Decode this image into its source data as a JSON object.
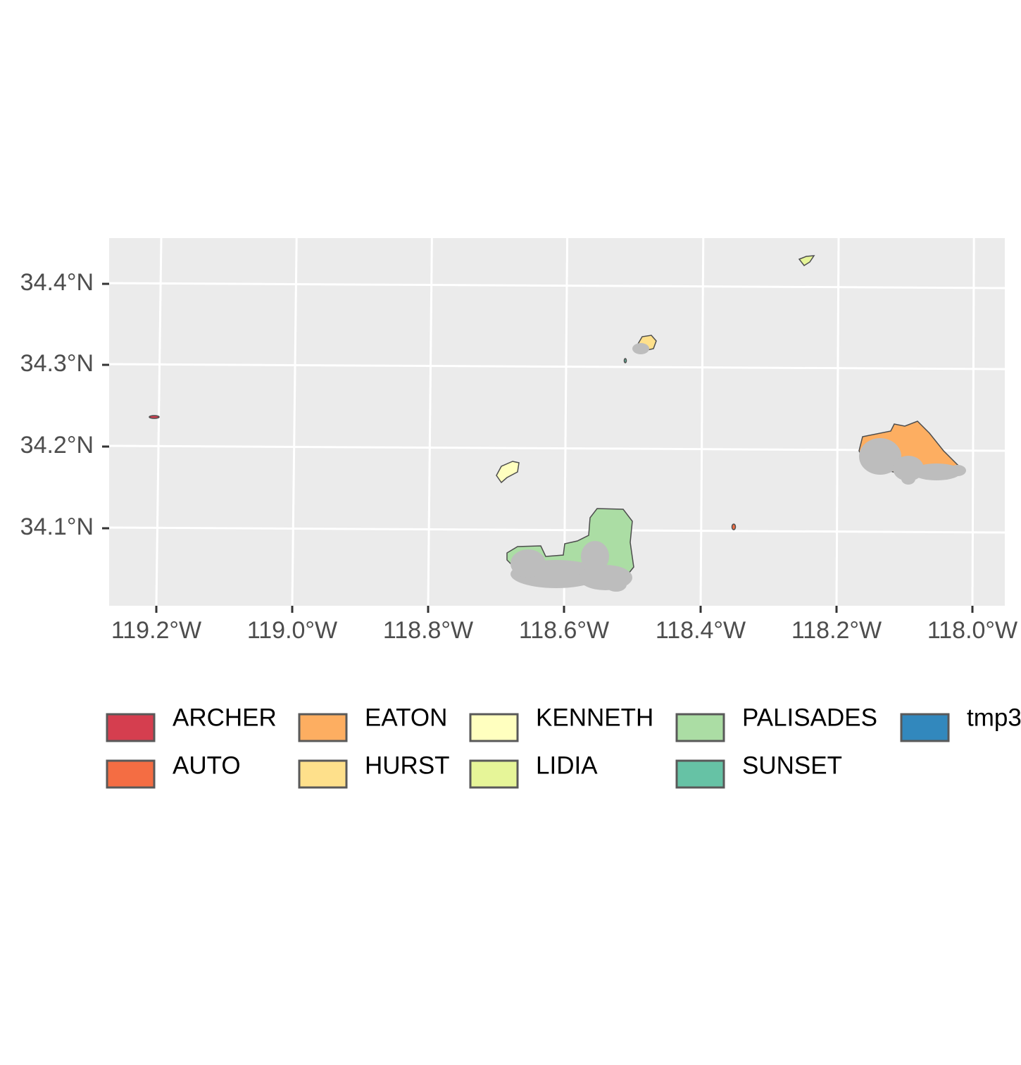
{
  "map": {
    "lat_ticks": [
      "34.4°N",
      "34.3°N",
      "34.2°N",
      "34.1°N"
    ],
    "lon_ticks": [
      "119.2°W",
      "119.0°W",
      "118.8°W",
      "118.6°W",
      "118.4°W",
      "118.2°W",
      "118.0°W"
    ],
    "legend": [
      {
        "name": "ARCHER",
        "color": "#d53e4f"
      },
      {
        "name": "AUTO",
        "color": "#f46d43"
      },
      {
        "name": "EATON",
        "color": "#fdae61"
      },
      {
        "name": "HURST",
        "color": "#fee08b"
      },
      {
        "name": "KENNETH",
        "color": "#ffffbf"
      },
      {
        "name": "LIDIA",
        "color": "#e6f598"
      },
      {
        "name": "PALISADES",
        "color": "#abdda4"
      },
      {
        "name": "SUNSET",
        "color": "#66c2a5"
      },
      {
        "name": "tmp3",
        "color": "#3288bd"
      }
    ]
  }
}
